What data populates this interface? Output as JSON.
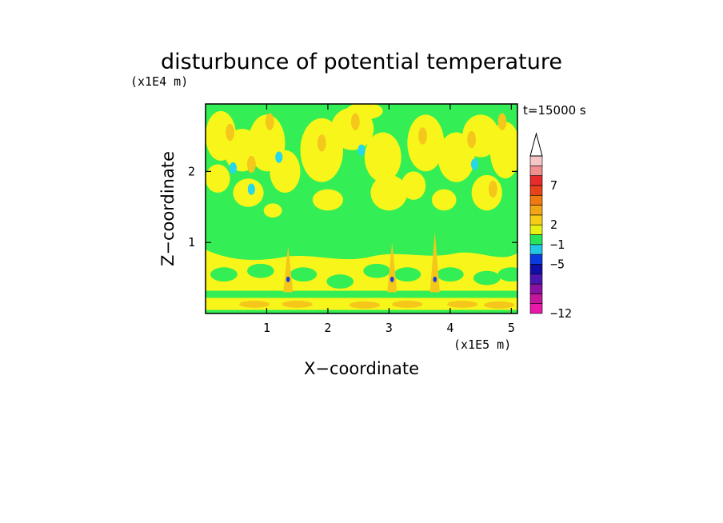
{
  "chart_data": {
    "type": "heatmap",
    "title": "disturbunce of potential temperature",
    "time_label": "t=15000 s",
    "xlabel": "X−coordinate",
    "ylabel": "Z−coordinate",
    "x_unit_label": "(x1E5 m)",
    "y_unit_label": "(x1E4 m)",
    "xlim": [
      0,
      5.1
    ],
    "ylim": [
      0,
      2.95
    ],
    "x_ticks": [
      1,
      2,
      3,
      4,
      5
    ],
    "y_ticks": [
      1,
      2
    ],
    "x_tick_labels": [
      "1",
      "2",
      "3",
      "4",
      "5"
    ],
    "y_tick_labels": [
      "1",
      "2"
    ],
    "colorbar": {
      "levels": [
        "−12",
        "−5",
        "−1",
        "2",
        "7"
      ],
      "level_values": [
        -12,
        -5,
        -1,
        2,
        7
      ],
      "colors": [
        "#e819a8",
        "#c3179b",
        "#8a12a3",
        "#4b16b0",
        "#1010a8",
        "#0b3adf",
        "#22c7e6",
        "#27e45a",
        "#e6f014",
        "#f5cc16",
        "#f3a513",
        "#f07a12",
        "#e8421a",
        "#e82b2b",
        "#f18e8e",
        "#f6c6c6"
      ],
      "extend_top": true
    },
    "field_note_colors": {
      "background": "#33ee55",
      "weak_positive": "#f7f51a",
      "positive": "#f5c71b",
      "negative": "#27d7ea",
      "strong_negative": "#1540d8"
    }
  }
}
